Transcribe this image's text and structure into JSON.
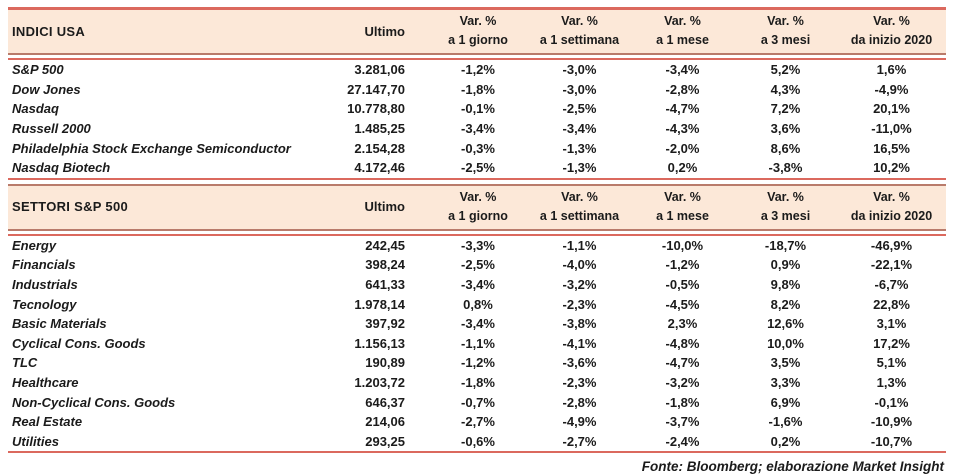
{
  "columns": {
    "ultimo": "Ultimo",
    "var_cols": [
      {
        "line1": "Var. %",
        "line2": "a 1 giorno"
      },
      {
        "line1": "Var. %",
        "line2": "a 1 settimana"
      },
      {
        "line1": "Var. %",
        "line2": "a 1 mese"
      },
      {
        "line1": "Var. %",
        "line2": "a 3 mesi"
      },
      {
        "line1": "Var. %",
        "line2": "da inizio 2020"
      }
    ]
  },
  "indici": {
    "title": "INDICI USA",
    "rows": [
      {
        "label": "S&P 500",
        "ultimo": "3.281,06",
        "d1": "-1,2%",
        "w1": "-3,0%",
        "m1": "-3,4%",
        "m3": "5,2%",
        "ytd": "1,6%"
      },
      {
        "label": "Dow Jones",
        "ultimo": "27.147,70",
        "d1": "-1,8%",
        "w1": "-3,0%",
        "m1": "-2,8%",
        "m3": "4,3%",
        "ytd": "-4,9%"
      },
      {
        "label": "Nasdaq",
        "ultimo": "10.778,80",
        "d1": "-0,1%",
        "w1": "-2,5%",
        "m1": "-4,7%",
        "m3": "7,2%",
        "ytd": "20,1%"
      },
      {
        "label": "Russell 2000",
        "ultimo": "1.485,25",
        "d1": "-3,4%",
        "w1": "-3,4%",
        "m1": "-4,3%",
        "m3": "3,6%",
        "ytd": "-11,0%"
      },
      {
        "label": "Philadelphia Stock Exchange Semiconductor",
        "ultimo": "2.154,28",
        "d1": "-0,3%",
        "w1": "-1,3%",
        "m1": "-2,0%",
        "m3": "8,6%",
        "ytd": "16,5%"
      },
      {
        "label": "Nasdaq Biotech",
        "ultimo": "4.172,46",
        "d1": "-2,5%",
        "w1": "-1,3%",
        "m1": "0,2%",
        "m3": "-3,8%",
        "ytd": "10,2%"
      }
    ]
  },
  "settori": {
    "title": "SETTORI S&P 500",
    "rows": [
      {
        "label": "Energy",
        "ultimo": "242,45",
        "d1": "-3,3%",
        "w1": "-1,1%",
        "m1": "-10,0%",
        "m3": "-18,7%",
        "ytd": "-46,9%"
      },
      {
        "label": "Financials",
        "ultimo": "398,24",
        "d1": "-2,5%",
        "w1": "-4,0%",
        "m1": "-1,2%",
        "m3": "0,9%",
        "ytd": "-22,1%"
      },
      {
        "label": "Industrials",
        "ultimo": "641,33",
        "d1": "-3,4%",
        "w1": "-3,2%",
        "m1": "-0,5%",
        "m3": "9,8%",
        "ytd": "-6,7%"
      },
      {
        "label": "Tecnology",
        "ultimo": "1.978,14",
        "d1": "0,8%",
        "w1": "-2,3%",
        "m1": "-4,5%",
        "m3": "8,2%",
        "ytd": "22,8%"
      },
      {
        "label": "Basic Materials",
        "ultimo": "397,92",
        "d1": "-3,4%",
        "w1": "-3,8%",
        "m1": "2,3%",
        "m3": "12,6%",
        "ytd": "3,1%"
      },
      {
        "label": "Cyclical Cons. Goods",
        "ultimo": "1.156,13",
        "d1": "-1,1%",
        "w1": "-4,1%",
        "m1": "-4,8%",
        "m3": "10,0%",
        "ytd": "17,2%"
      },
      {
        "label": "TLC",
        "ultimo": "190,89",
        "d1": "-1,2%",
        "w1": "-3,6%",
        "m1": "-4,7%",
        "m3": "3,5%",
        "ytd": "5,1%"
      },
      {
        "label": "Healthcare",
        "ultimo": "1.203,72",
        "d1": "-1,8%",
        "w1": "-2,3%",
        "m1": "-3,2%",
        "m3": "3,3%",
        "ytd": "1,3%"
      },
      {
        "label": "Non-Cyclical Cons. Goods",
        "ultimo": "646,37",
        "d1": "-0,7%",
        "w1": "-2,8%",
        "m1": "-1,8%",
        "m3": "6,9%",
        "ytd": "-0,1%"
      },
      {
        "label": "Real Estate",
        "ultimo": "214,06",
        "d1": "-2,7%",
        "w1": "-4,9%",
        "m1": "-3,7%",
        "m3": "-1,6%",
        "ytd": "-10,9%"
      },
      {
        "label": "Utilities",
        "ultimo": "293,25",
        "d1": "-0,6%",
        "w1": "-2,7%",
        "m1": "-2,4%",
        "m3": "0,2%",
        "ytd": "-10,7%"
      }
    ]
  },
  "footer": {
    "source": "Fonte: Bloomberg; elaborazione Market Insight"
  },
  "colors": {
    "header_bg": "#fce8d8",
    "rule_salmon": "#db695e",
    "rule_brown": "#b97b6b",
    "text": "#1b1b1b"
  }
}
